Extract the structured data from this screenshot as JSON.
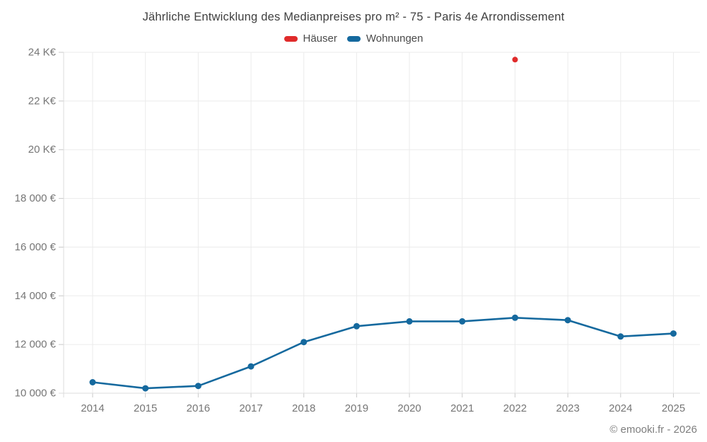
{
  "chart": {
    "title": "Jährliche Entwicklung des Medianpreises pro m² - 75 - Paris 4e Arrondissement"
  },
  "footer": {
    "copyright": "© emooki.fr - 2026"
  },
  "chart_data": {
    "type": "line",
    "title": "Jährliche Entwicklung des Medianpreises pro m² - 75 - Paris 4e Arrondissement",
    "categories": [
      "2014",
      "2015",
      "2016",
      "2017",
      "2018",
      "2019",
      "2020",
      "2021",
      "2022",
      "2023",
      "2024",
      "2025"
    ],
    "series": [
      {
        "name": "Häuser",
        "color": "#e02b2b",
        "values": [
          null,
          null,
          null,
          null,
          null,
          null,
          null,
          null,
          23700,
          null,
          null,
          null
        ]
      },
      {
        "name": "Wohnungen",
        "color": "#15699e",
        "values": [
          10450,
          10200,
          10300,
          11100,
          12100,
          12750,
          12950,
          12950,
          13100,
          13000,
          12330,
          12450
        ]
      }
    ],
    "xlabel": "",
    "ylabel": "",
    "ylim": [
      10000,
      24000
    ],
    "y_ticks": [
      {
        "value": 10000,
        "label": "10 000 €"
      },
      {
        "value": 12000,
        "label": "12 000 €"
      },
      {
        "value": 14000,
        "label": "14 000 €"
      },
      {
        "value": 16000,
        "label": "16 000 €"
      },
      {
        "value": 18000,
        "label": "18 000 €"
      },
      {
        "value": 20000,
        "label": "20 K€"
      },
      {
        "value": 22000,
        "label": "22 K€"
      },
      {
        "value": 24000,
        "label": "24 K€"
      }
    ],
    "grid": true,
    "legend_position": "top-center"
  },
  "colors": {
    "grid_line": "#ebebeb",
    "axis_line": "#dcdcdc",
    "tick": "#c9c9c9",
    "title_text": "#3f3f3f",
    "legend_text": "#4a4a4a",
    "axis_label": "#767676",
    "footer_text": "#7e7e7e"
  }
}
